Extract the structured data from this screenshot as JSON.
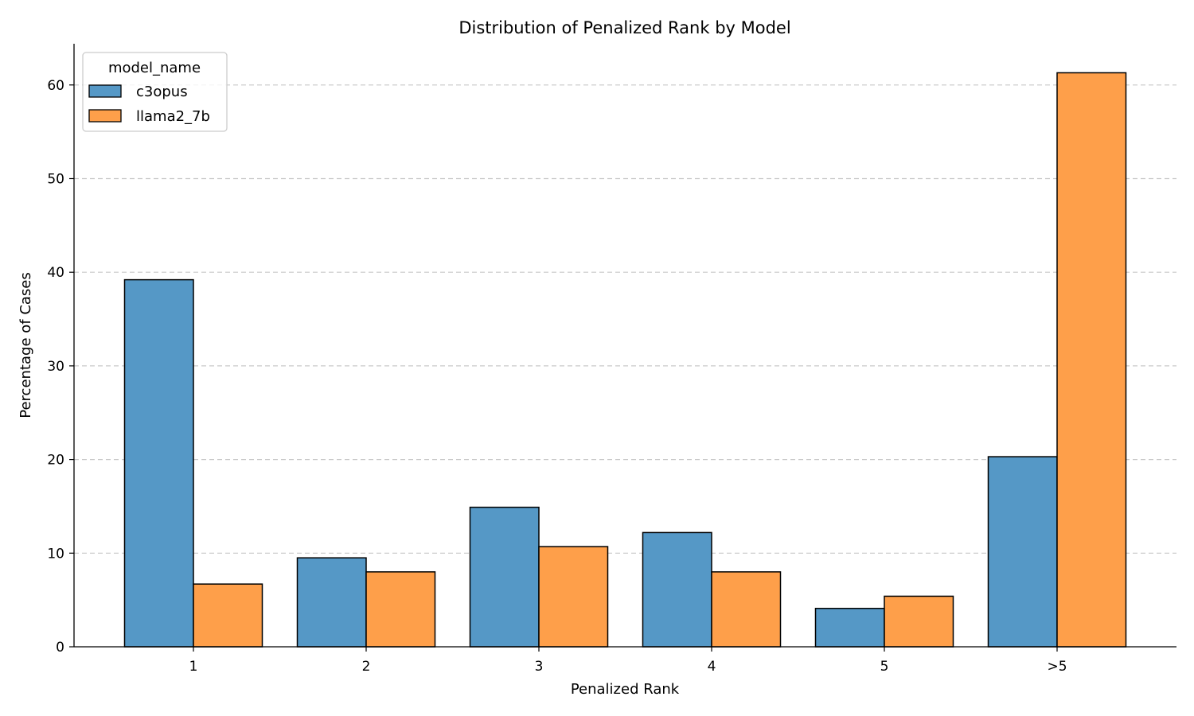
{
  "chart_data": {
    "type": "bar",
    "title": "Distribution of Penalized Rank by Model",
    "xlabel": "Penalized Rank",
    "ylabel": "Percentage of Cases",
    "categories": [
      "1",
      "2",
      "3",
      "4",
      "5",
      ">5"
    ],
    "series": [
      {
        "name": "c3opus",
        "color": "#5598c6",
        "values": [
          39.2,
          9.5,
          14.9,
          12.2,
          4.1,
          20.3
        ]
      },
      {
        "name": "llama2_7b",
        "color": "#fe9f4a",
        "values": [
          6.7,
          8.0,
          10.7,
          8.0,
          5.4,
          61.3
        ]
      }
    ],
    "ylim": [
      0,
      64.4
    ],
    "yticks": [
      0,
      10,
      20,
      30,
      40,
      50,
      60
    ],
    "grid": "y-dashed",
    "legend": {
      "title": "model_name",
      "placement": "top-left"
    }
  }
}
